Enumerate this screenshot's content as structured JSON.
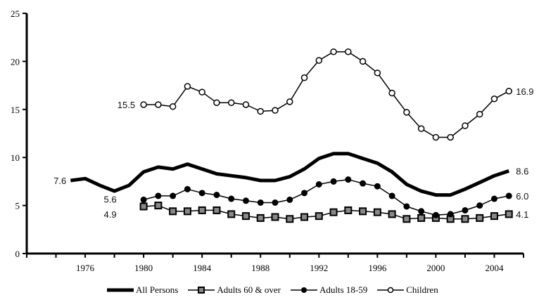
{
  "chart_data": {
    "type": "line",
    "title": "",
    "xlabel": "",
    "ylabel": "",
    "xlim": [
      1972,
      2006
    ],
    "ylim": [
      0,
      25
    ],
    "grid": false,
    "legend_position": "bottom",
    "yticks": [
      0,
      5,
      10,
      15,
      20,
      25
    ],
    "xtick_labels": [
      1976,
      1980,
      1984,
      1988,
      1992,
      1996,
      2000,
      2004
    ],
    "xtick_marks": [
      1972,
      1974,
      1976,
      1978,
      1980,
      1982,
      1984,
      1986,
      1988,
      1990,
      1992,
      1994,
      1996,
      1998,
      2000,
      2002,
      2004,
      2006
    ],
    "series": [
      {
        "name": "All Persons",
        "marker": "none",
        "style": "thick",
        "x": [
          1975,
          1976,
          1977,
          1978,
          1979,
          1980,
          1981,
          1982,
          1983,
          1984,
          1985,
          1986,
          1987,
          1988,
          1989,
          1990,
          1991,
          1992,
          1993,
          1994,
          1995,
          1996,
          1997,
          1998,
          1999,
          2000,
          2001,
          2002,
          2003,
          2004,
          2005
        ],
        "values": [
          7.6,
          7.8,
          7.1,
          6.5,
          7.1,
          8.5,
          9.0,
          8.8,
          9.3,
          8.8,
          8.3,
          8.1,
          7.9,
          7.6,
          7.6,
          8.0,
          8.8,
          9.9,
          10.4,
          10.4,
          9.9,
          9.4,
          8.5,
          7.2,
          6.5,
          6.1,
          6.1,
          6.7,
          7.4,
          8.1,
          8.6
        ]
      },
      {
        "name": "Adults 60 & over",
        "marker": "square",
        "x": [
          1980,
          1981,
          1982,
          1983,
          1984,
          1985,
          1986,
          1987,
          1988,
          1989,
          1990,
          1991,
          1992,
          1993,
          1994,
          1995,
          1996,
          1997,
          1998,
          1999,
          2000,
          2001,
          2002,
          2003,
          2004,
          2005
        ],
        "values": [
          4.9,
          5.0,
          4.4,
          4.4,
          4.5,
          4.5,
          4.1,
          3.9,
          3.7,
          3.8,
          3.6,
          3.8,
          3.9,
          4.3,
          4.5,
          4.4,
          4.3,
          4.1,
          3.6,
          3.7,
          3.7,
          3.6,
          3.6,
          3.7,
          3.9,
          4.1
        ]
      },
      {
        "name": "Adults 18-59",
        "marker": "filled-circle",
        "x": [
          1980,
          1981,
          1982,
          1983,
          1984,
          1985,
          1986,
          1987,
          1988,
          1989,
          1990,
          1991,
          1992,
          1993,
          1994,
          1995,
          1996,
          1997,
          1998,
          1999,
          2000,
          2001,
          2002,
          2003,
          2004,
          2005
        ],
        "values": [
          5.6,
          6.0,
          6.0,
          6.7,
          6.3,
          6.1,
          5.7,
          5.5,
          5.3,
          5.3,
          5.6,
          6.3,
          7.2,
          7.5,
          7.7,
          7.3,
          7.0,
          6.0,
          4.9,
          4.4,
          4.0,
          4.1,
          4.5,
          5.0,
          5.7,
          6.0
        ]
      },
      {
        "name": "Children",
        "marker": "open-circle",
        "x": [
          1980,
          1981,
          1982,
          1983,
          1984,
          1985,
          1986,
          1987,
          1988,
          1989,
          1990,
          1991,
          1992,
          1993,
          1994,
          1995,
          1996,
          1997,
          1998,
          1999,
          2000,
          2001,
          2002,
          2003,
          2004,
          2005
        ],
        "values": [
          15.5,
          15.5,
          15.3,
          17.4,
          16.8,
          15.7,
          15.7,
          15.5,
          14.8,
          14.9,
          15.8,
          18.3,
          20.1,
          21.0,
          21.0,
          20.0,
          18.8,
          16.7,
          14.7,
          13.0,
          12.1,
          12.1,
          13.3,
          14.5,
          16.1,
          16.9
        ]
      }
    ],
    "annotations": [
      {
        "text": "7.6",
        "series": "All Persons",
        "position": "start"
      },
      {
        "text": "8.6",
        "series": "All Persons",
        "position": "end"
      },
      {
        "text": "4.9",
        "series": "Adults 60 & over",
        "position": "start"
      },
      {
        "text": "4.1",
        "series": "Adults 60 & over",
        "position": "end"
      },
      {
        "text": "5.6",
        "series": "Adults 18-59",
        "position": "start"
      },
      {
        "text": "6.0",
        "series": "Adults 18-59",
        "position": "end"
      },
      {
        "text": "15.5",
        "series": "Children",
        "position": "start"
      },
      {
        "text": "16.9",
        "series": "Children",
        "position": "end"
      }
    ]
  },
  "legend": {
    "items": [
      {
        "label": "All Persons",
        "icon": "thick-line-icon"
      },
      {
        "label": "Adults 60 & over",
        "icon": "square-marker-icon"
      },
      {
        "label": "Adults 18-59",
        "icon": "filled-circle-marker-icon"
      },
      {
        "label": "Children",
        "icon": "open-circle-marker-icon"
      }
    ]
  },
  "colors": {
    "line": "#000000",
    "square_fill": "#888888",
    "label_text": "#111111"
  }
}
